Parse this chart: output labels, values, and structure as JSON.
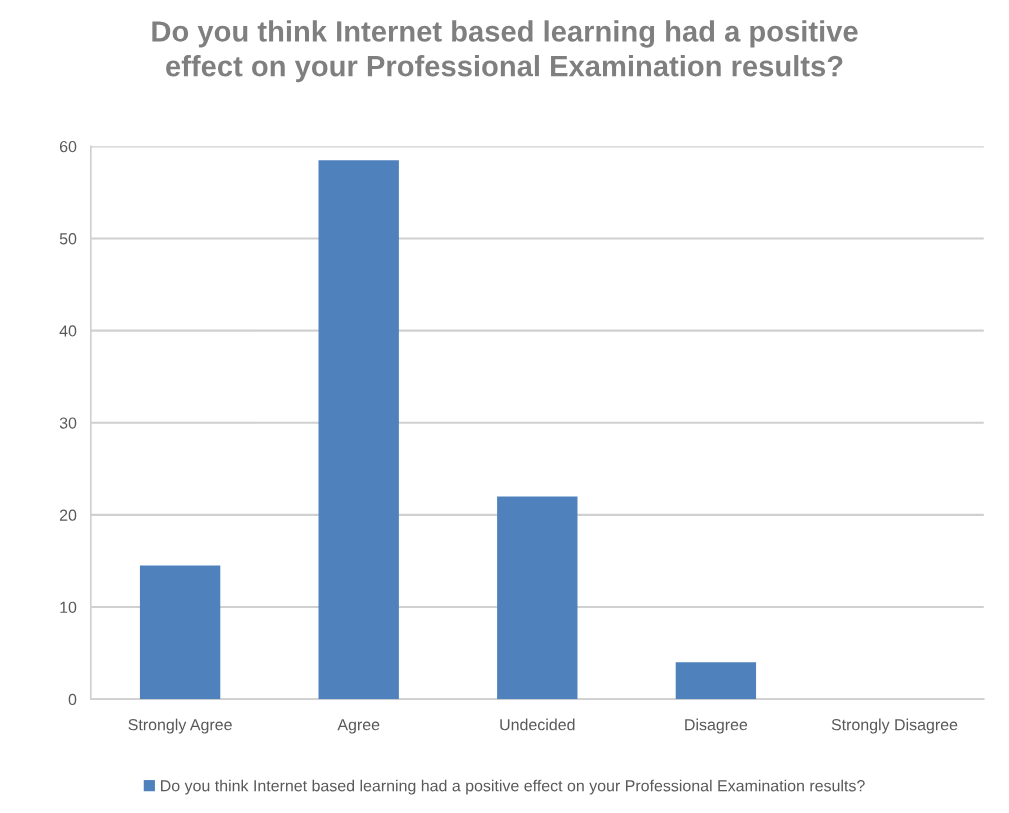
{
  "chart_data": {
    "type": "bar",
    "title": "Do you think Internet based learning had a positive\neffect on your Professional Examination results?",
    "categories": [
      "Strongly Agree",
      "Agree",
      "Undecided",
      "Disagree",
      "Strongly Disagree"
    ],
    "series": [
      {
        "name": "Do you think Internet based learning had a positive effect on your Professional Examination results?",
        "color": "#4f81bd",
        "values": [
          14.5,
          58.5,
          22,
          4,
          0
        ]
      }
    ],
    "ylim": [
      0,
      60
    ],
    "yticks": [
      0,
      10,
      20,
      30,
      40,
      50,
      60
    ],
    "grid": "y",
    "legend": "bottom"
  }
}
